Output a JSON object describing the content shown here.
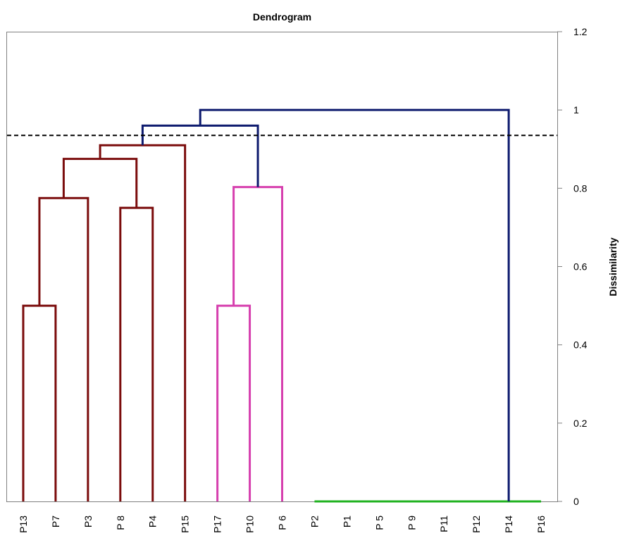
{
  "chart_data": {
    "type": "dendrogram",
    "title": "Dendrogram",
    "ylabel": "Dissimilarity",
    "ylim": [
      0,
      1.2
    ],
    "yticks": [
      {
        "value": 0,
        "label": "0"
      },
      {
        "value": 0.2,
        "label": "0.2"
      },
      {
        "value": 0.4,
        "label": "0.4"
      },
      {
        "value": 0.6,
        "label": "0.6"
      },
      {
        "value": 0.8,
        "label": "0.8"
      },
      {
        "value": 1.0,
        "label": "1"
      },
      {
        "value": 1.2,
        "label": "1.2"
      }
    ],
    "y_axis_side": "right",
    "leaves": [
      "P13",
      "P7",
      "P3",
      "P 8",
      "P4",
      "P15",
      "P17",
      "P10",
      "P 6",
      "P2",
      "P1",
      "P 5",
      "P 9",
      "P11",
      "P12",
      "P14",
      "P16"
    ],
    "cut_height": 0.935,
    "colors": {
      "cluster_1": "#7b0c0c",
      "cluster_2": "#d63fae",
      "cluster_3": "#1fb21f",
      "upper": "#0d1a6e",
      "axis": "#808080",
      "cut_line": "#000000"
    },
    "merges": [
      {
        "id": "m1",
        "left": "P13",
        "right": "P7",
        "height": 0.5,
        "color": "cluster_1"
      },
      {
        "id": "m2",
        "left": "m1",
        "right": "P3",
        "height": 0.775,
        "color": "cluster_1"
      },
      {
        "id": "m3",
        "left": "P 8",
        "right": "P4",
        "height": 0.75,
        "color": "cluster_1"
      },
      {
        "id": "m4",
        "left": "m2",
        "right": "m3",
        "height": 0.875,
        "color": "cluster_1"
      },
      {
        "id": "m5",
        "left": "m4",
        "right": "P15",
        "height": 0.91,
        "color": "cluster_1"
      },
      {
        "id": "m6",
        "left": "P17",
        "right": "P10",
        "height": 0.5,
        "color": "cluster_2"
      },
      {
        "id": "m7",
        "left": "m6",
        "right": "P 6",
        "height": 0.803,
        "color": "cluster_2"
      },
      {
        "id": "m8",
        "left": "m5",
        "right": "m7",
        "height": 0.96,
        "color": "upper"
      },
      {
        "id": "m9",
        "left": "m8",
        "right": "P14",
        "height": 1.0,
        "color": "upper"
      }
    ],
    "zero_height_group": {
      "leaves": [
        "P2",
        "P1",
        "P 5",
        "P 9",
        "P11",
        "P12",
        "P14",
        "P16"
      ],
      "height": 0,
      "color": "cluster_3"
    },
    "grid": false,
    "legend": "none"
  }
}
